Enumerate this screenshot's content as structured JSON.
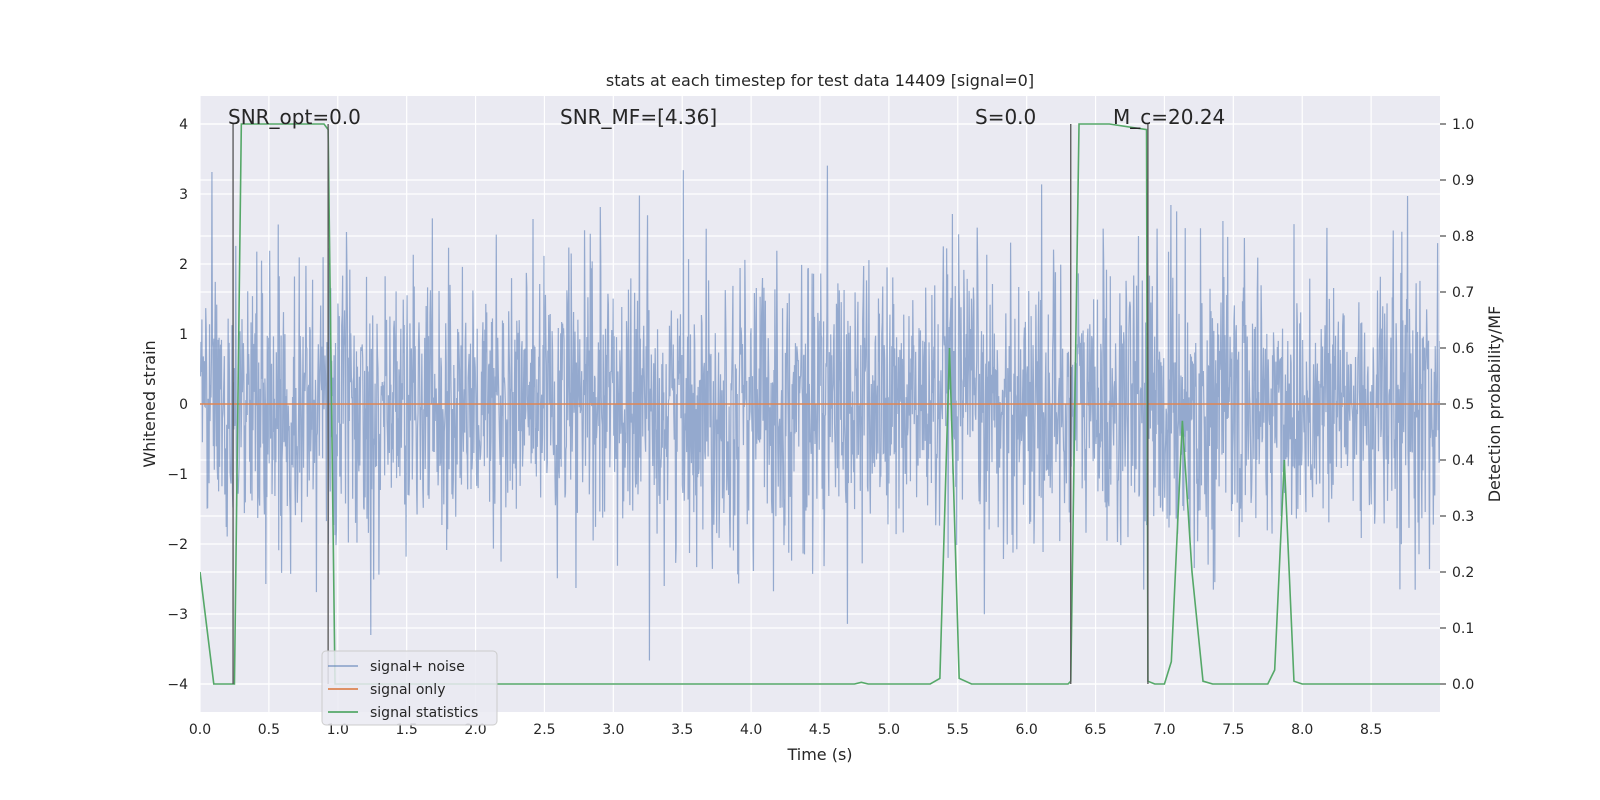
{
  "chart_data": {
    "type": "line",
    "title": "stats at each timestep for test data 14409 [signal=0]",
    "xlabel": "Time (s)",
    "ylabel": "Whitened strain",
    "ylabel_right": "Detection probability/MF",
    "xlim": [
      0.0,
      9.0
    ],
    "ylim": [
      -4.4,
      4.4
    ],
    "ylim_right": [
      -0.05,
      1.05
    ],
    "x_ticks": [
      0.0,
      0.5,
      1.0,
      1.5,
      2.0,
      2.5,
      3.0,
      3.5,
      4.0,
      4.5,
      5.0,
      5.5,
      6.0,
      6.5,
      7.0,
      7.5,
      8.0,
      8.5
    ],
    "x_tick_labels": [
      "0.0",
      "0.5",
      "1.0",
      "1.5",
      "2.0",
      "2.5",
      "3.0",
      "3.5",
      "4.0",
      "4.5",
      "5.0",
      "5.5",
      "6.0",
      "6.5",
      "7.0",
      "7.5",
      "8.0",
      "8.5"
    ],
    "y_ticks": [
      -4,
      -3,
      -2,
      -1,
      0,
      1,
      2,
      3,
      4
    ],
    "y_tick_labels": [
      "−4",
      "−3",
      "−2",
      "−1",
      "0",
      "1",
      "2",
      "3",
      "4"
    ],
    "y_ticks_right": [
      0.0,
      0.1,
      0.2,
      0.3,
      0.4,
      0.5,
      0.6,
      0.7,
      0.8,
      0.9,
      1.0
    ],
    "y_tick_labels_right": [
      "0.0",
      "0.1",
      "0.2",
      "0.3",
      "0.4",
      "0.5",
      "0.6",
      "0.7",
      "0.8",
      "0.9",
      "1.0"
    ],
    "grid": true,
    "legend_position": "lower-left",
    "annotations": [
      {
        "text": "SNR_opt=0.0",
        "x": 0.2,
        "y": 4.1
      },
      {
        "text": "SNR_MF=[4.36]",
        "x": 2.6,
        "y": 4.1
      },
      {
        "text": "S=0.0",
        "x": 5.6,
        "y": 4.1
      },
      {
        "text": "M_c=20.24",
        "x": 6.6,
        "y": 4.1
      }
    ],
    "vertical_lines": [
      0.24,
      0.93,
      6.32,
      6.88
    ],
    "series": [
      {
        "name": "signal+ noise",
        "axis": "left",
        "color": "#4c72b0",
        "style": "noise",
        "noise_sigma": 1.0,
        "noise_seed": 14409,
        "x_range": [
          0.0,
          9.0
        ]
      },
      {
        "name": "signal only",
        "axis": "left",
        "color": "#dd8452",
        "x": [
          0.0,
          9.0
        ],
        "y": [
          0.0,
          0.0
        ]
      },
      {
        "name": "signal statistics",
        "axis": "right",
        "color": "#55a868",
        "x": [
          0.0,
          0.05,
          0.1,
          0.2,
          0.24,
          0.25,
          0.3,
          0.5,
          0.9,
          0.93,
          0.98,
          1.1,
          2.0,
          3.0,
          4.0,
          4.75,
          4.8,
          4.85,
          5.0,
          5.3,
          5.37,
          5.44,
          5.51,
          5.6,
          6.0,
          6.3,
          6.32,
          6.38,
          6.6,
          6.87,
          6.88,
          6.93,
          7.0,
          7.05,
          7.13,
          7.2,
          7.28,
          7.35,
          7.5,
          7.75,
          7.8,
          7.87,
          7.94,
          8.0,
          8.5,
          9.0
        ],
        "y": [
          0.2,
          0.1,
          0.0,
          0.0,
          0.0,
          0.0,
          1.0,
          1.0,
          1.0,
          0.99,
          0.0,
          0.0,
          0.0,
          0.0,
          0.0,
          0.0,
          0.003,
          0.0,
          0.0,
          0.0,
          0.01,
          0.6,
          0.01,
          0.0,
          0.0,
          0.0,
          0.005,
          1.0,
          1.0,
          0.99,
          0.005,
          0.0,
          0.0,
          0.04,
          0.47,
          0.2,
          0.005,
          0.0,
          0.0,
          0.0,
          0.025,
          0.4,
          0.005,
          0.0,
          0.0,
          0.0
        ]
      }
    ]
  }
}
